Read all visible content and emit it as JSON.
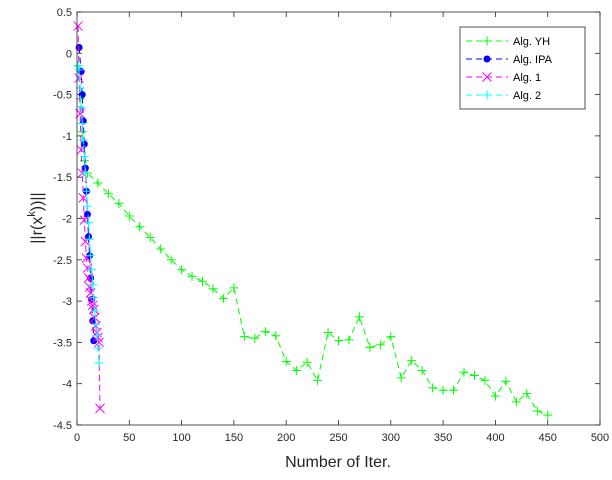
{
  "chart_data": {
    "type": "line",
    "title": "",
    "xlabel": "Number of Iter.",
    "ylabel": "||r(x^k)||",
    "xlim": [
      0,
      500
    ],
    "ylim": [
      -4.5,
      0.5
    ],
    "xticks": [
      0,
      50,
      100,
      150,
      200,
      250,
      300,
      350,
      400,
      450,
      500
    ],
    "yticks": [
      0.5,
      0,
      -0.5,
      -1,
      -1.5,
      -2,
      -2.5,
      -3,
      -3.5,
      -4,
      -4.5
    ],
    "xtick_labels": [
      "0",
      "50",
      "100",
      "150",
      "200",
      "250",
      "300",
      "350",
      "400",
      "450",
      "500"
    ],
    "ytick_labels": [
      "0.5",
      "0",
      "-0.5",
      "-1",
      "-1.5",
      "-2",
      "-2.5",
      "-3",
      "-3.5",
      "-4",
      "-4.5"
    ],
    "grid": false,
    "legend_position": "top-right",
    "series": [
      {
        "name": "Alg. YH",
        "color": "#00ff00",
        "marker": "plus",
        "x": [
          1,
          3,
          5,
          7,
          10,
          20,
          30,
          40,
          50,
          60,
          70,
          80,
          90,
          100,
          110,
          120,
          130,
          140,
          150,
          160,
          170,
          180,
          190,
          200,
          210,
          220,
          230,
          240,
          250,
          260,
          270,
          280,
          290,
          300,
          310,
          320,
          330,
          340,
          350,
          360,
          370,
          380,
          390,
          400,
          410,
          420,
          430,
          440,
          450
        ],
        "y": [
          -0.15,
          -0.55,
          -0.95,
          -1.3,
          -1.45,
          -1.57,
          -1.7,
          -1.82,
          -1.97,
          -2.1,
          -2.23,
          -2.37,
          -2.5,
          -2.62,
          -2.7,
          -2.76,
          -2.85,
          -2.97,
          -2.84,
          -3.43,
          -3.45,
          -3.37,
          -3.42,
          -3.73,
          -3.84,
          -3.74,
          -3.96,
          -3.38,
          -3.48,
          -3.47,
          -3.19,
          -3.56,
          -3.53,
          -3.43,
          -3.93,
          -3.72,
          -3.84,
          -4.05,
          -4.08,
          -4.08,
          -3.86,
          -3.9,
          -3.96,
          -4.15,
          -3.97,
          -4.22,
          -4.12,
          -4.33,
          -4.38
        ]
      },
      {
        "name": "Alg. IPA",
        "color": "#0000ff",
        "marker": "dot",
        "x": [
          2,
          4,
          5,
          6,
          7,
          8,
          9,
          10,
          11,
          12,
          13,
          14,
          15,
          16
        ],
        "y": [
          0.07,
          -0.22,
          -0.5,
          -0.82,
          -1.1,
          -1.39,
          -1.67,
          -1.95,
          -2.22,
          -2.45,
          -2.72,
          -2.98,
          -3.24,
          -3.48
        ]
      },
      {
        "name": "Alg. 1",
        "color": "#ff00ff",
        "marker": "x",
        "x": [
          1,
          2,
          3,
          4,
          5,
          6,
          7,
          8,
          9,
          10,
          11,
          12,
          13,
          14,
          15,
          16,
          17,
          18,
          19,
          20,
          21,
          22
        ],
        "y": [
          0.33,
          -0.3,
          -0.73,
          -1.17,
          -1.45,
          -1.75,
          -2.02,
          -2.28,
          -2.48,
          -2.6,
          -2.72,
          -2.83,
          -2.9,
          -3.0,
          -3.05,
          -3.1,
          -3.2,
          -3.3,
          -3.38,
          -3.44,
          -3.5,
          -4.3
        ]
      },
      {
        "name": "Alg. 2",
        "color": "#00ffff",
        "marker": "plus",
        "x": [
          1,
          2,
          3,
          4,
          5,
          6,
          7,
          8,
          9,
          10,
          11,
          12,
          13,
          14,
          15,
          16,
          17,
          18,
          19,
          20,
          21
        ],
        "y": [
          -0.15,
          -0.2,
          -0.42,
          -0.65,
          -0.85,
          -1.05,
          -1.25,
          -1.45,
          -1.67,
          -1.85,
          -2.05,
          -2.25,
          -2.45,
          -2.62,
          -2.8,
          -2.96,
          -3.12,
          -3.28,
          -3.42,
          -3.57,
          -3.75
        ]
      }
    ]
  }
}
